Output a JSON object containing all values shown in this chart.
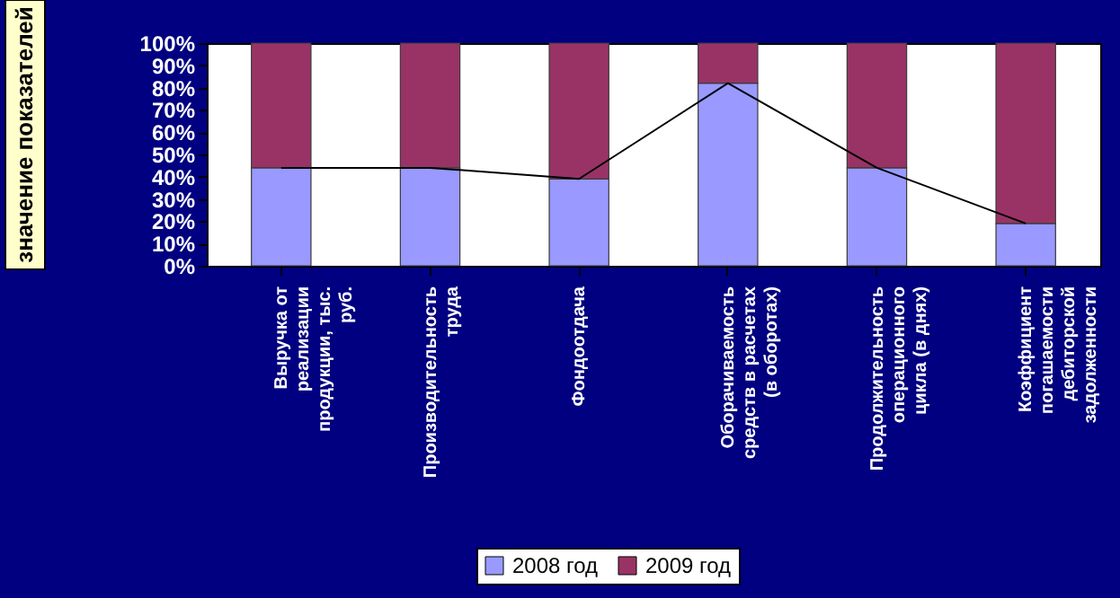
{
  "chart_data": {
    "type": "bar",
    "stacked": true,
    "ylabel": "значение показателей",
    "categories": [
      "Выручка от реализации продукции, тыс. руб.",
      "Производительность труда",
      "Фондоотдача",
      "Оборачиваемость средств в расчетах (в оборотах)",
      "Продолжительность операционного цикла (в днях)",
      "Коэффициент погашаемости дебиторской задолженности"
    ],
    "series": [
      {
        "name": "2008 год",
        "color": "#9999ff",
        "values": [
          44,
          44,
          39,
          82,
          44,
          19
        ]
      },
      {
        "name": "2009 год",
        "color": "#993366",
        "values": [
          56,
          56,
          61,
          18,
          56,
          81
        ]
      },
      {
        "type": "line",
        "color": "#000000",
        "values": [
          44,
          44,
          39,
          82,
          44,
          19
        ]
      }
    ],
    "ylim": [
      0,
      100
    ],
    "yticks": [
      {
        "value": 0,
        "label": "0%"
      },
      {
        "value": 10,
        "label": "10%"
      },
      {
        "value": 20,
        "label": "20%"
      },
      {
        "value": 30,
        "label": "30%"
      },
      {
        "value": 40,
        "label": "40%"
      },
      {
        "value": 50,
        "label": "50%"
      },
      {
        "value": 60,
        "label": "60%"
      },
      {
        "value": 70,
        "label": "70%"
      },
      {
        "value": 80,
        "label": "80%"
      },
      {
        "value": 90,
        "label": "90%"
      },
      {
        "value": 100,
        "label": "100%"
      }
    ],
    "grid": false,
    "legend": "bottom"
  }
}
